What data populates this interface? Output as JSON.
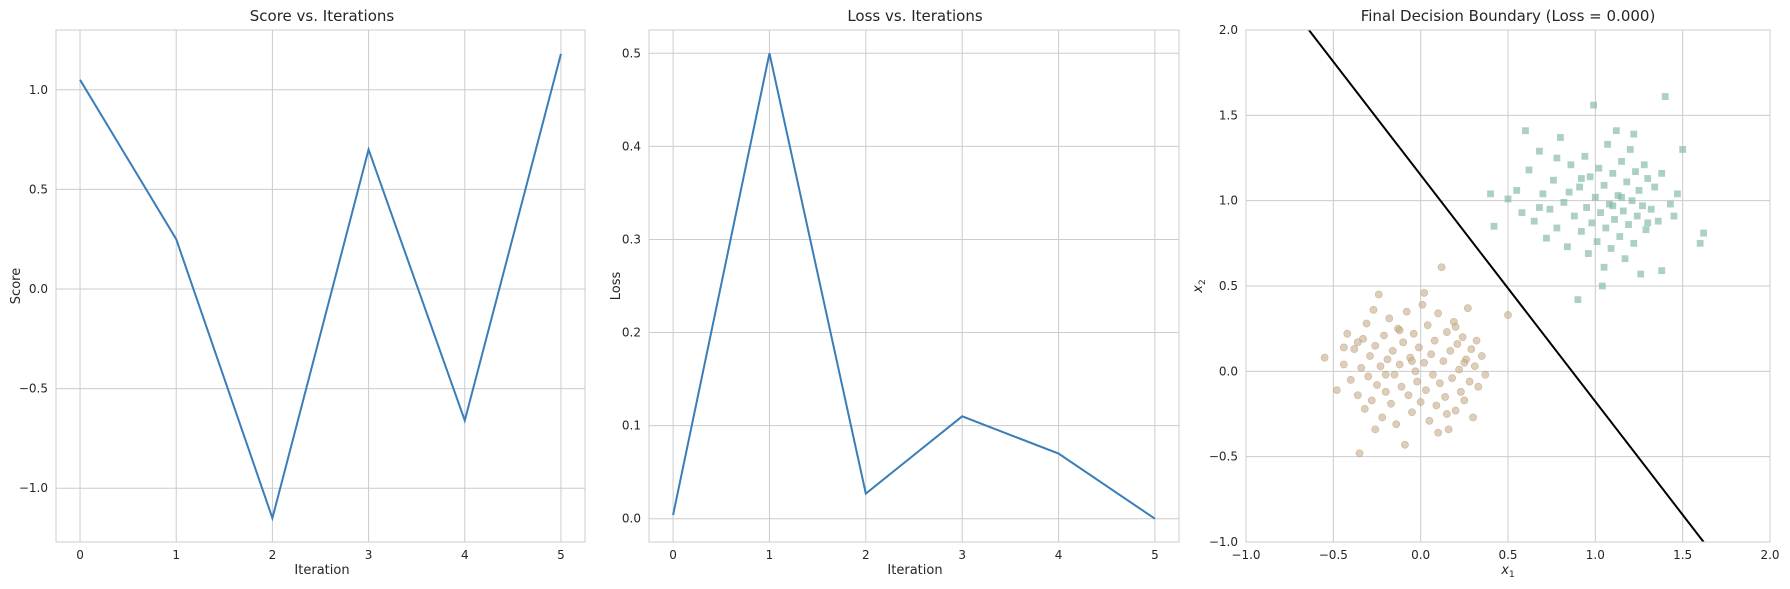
{
  "colors": {
    "line": "#3a7db7",
    "boundary": "#000000",
    "class_circle": "#c8ad8a",
    "class_square": "#7fb5a7",
    "grid": "#cccccc"
  },
  "chart_data": [
    {
      "type": "line",
      "title": "Score vs. Iterations",
      "xlabel": "Iteration",
      "ylabel": "Score",
      "x": [
        0,
        1,
        2,
        3,
        4,
        5
      ],
      "y": [
        1.05,
        0.25,
        -1.15,
        0.7,
        -0.66,
        1.18
      ],
      "xlim": [
        -0.25,
        5.25
      ],
      "ylim": [
        -1.27,
        1.3
      ],
      "xticks": [
        0,
        1,
        2,
        3,
        4,
        5
      ],
      "yticks": [
        -1.0,
        -0.5,
        0.0,
        0.5,
        1.0
      ],
      "xtick_labels": [
        "0",
        "1",
        "2",
        "3",
        "4",
        "5"
      ],
      "ytick_labels": [
        "−1.0",
        "−0.5",
        "0.0",
        "0.5",
        "1.0"
      ],
      "grid": true
    },
    {
      "type": "line",
      "title": "Loss vs. Iterations",
      "xlabel": "Iteration",
      "ylabel": "Loss",
      "x": [
        0,
        1,
        2,
        3,
        4,
        5
      ],
      "y": [
        0.004,
        0.5,
        0.027,
        0.11,
        0.07,
        0.0
      ],
      "xlim": [
        -0.25,
        5.25
      ],
      "ylim": [
        -0.025,
        0.525
      ],
      "xticks": [
        0,
        1,
        2,
        3,
        4,
        5
      ],
      "yticks": [
        0.0,
        0.1,
        0.2,
        0.3,
        0.4,
        0.5
      ],
      "xtick_labels": [
        "0",
        "1",
        "2",
        "3",
        "4",
        "5"
      ],
      "ytick_labels": [
        "0.0",
        "0.1",
        "0.2",
        "0.3",
        "0.4",
        "0.5"
      ],
      "grid": true
    },
    {
      "type": "scatter",
      "title": "Final Decision Boundary (Loss = 0.000)",
      "xlabel_main": "x",
      "xlabel_sub": "1",
      "ylabel_main": "x",
      "ylabel_sub": "2",
      "xlim": [
        -1.0,
        2.0
      ],
      "ylim": [
        -1.0,
        2.0
      ],
      "xticks": [
        -1.0,
        -0.5,
        0.0,
        0.5,
        1.0,
        1.5,
        2.0
      ],
      "yticks": [
        -1.0,
        -0.5,
        0.0,
        0.5,
        1.0,
        1.5,
        2.0
      ],
      "xtick_labels": [
        "−1.0",
        "−0.5",
        "0.0",
        "0.5",
        "1.0",
        "1.5",
        "2.0"
      ],
      "ytick_labels": [
        "−1.0",
        "−0.5",
        "0.0",
        "0.5",
        "1.0",
        "1.5",
        "2.0"
      ],
      "grid": true,
      "boundary": {
        "x": [
          -0.64,
          1.62
        ],
        "y": [
          2.0,
          -1.0
        ]
      },
      "series": [
        {
          "marker": "circle",
          "color": "#c8ad8a",
          "points": [
            [
              -0.55,
              0.08
            ],
            [
              -0.48,
              -0.11
            ],
            [
              -0.44,
              0.04
            ],
            [
              -0.42,
              0.22
            ],
            [
              -0.4,
              -0.05
            ],
            [
              -0.38,
              0.13
            ],
            [
              -0.36,
              -0.14
            ],
            [
              -0.35,
              -0.48
            ],
            [
              -0.34,
              0.02
            ],
            [
              -0.33,
              0.19
            ],
            [
              -0.32,
              -0.22
            ],
            [
              -0.31,
              0.28
            ],
            [
              -0.3,
              -0.03
            ],
            [
              -0.29,
              0.09
            ],
            [
              -0.28,
              -0.17
            ],
            [
              -0.27,
              0.36
            ],
            [
              -0.26,
              0.15
            ],
            [
              -0.25,
              -0.08
            ],
            [
              -0.24,
              0.45
            ],
            [
              -0.23,
              0.03
            ],
            [
              -0.22,
              -0.27
            ],
            [
              -0.21,
              0.21
            ],
            [
              -0.2,
              -0.12
            ],
            [
              -0.19,
              0.07
            ],
            [
              -0.18,
              0.31
            ],
            [
              -0.17,
              -0.19
            ],
            [
              -0.16,
              0.12
            ],
            [
              -0.15,
              -0.02
            ],
            [
              -0.14,
              -0.31
            ],
            [
              -0.13,
              0.25
            ],
            [
              -0.12,
              0.04
            ],
            [
              -0.11,
              -0.09
            ],
            [
              -0.1,
              0.17
            ],
            [
              -0.09,
              -0.43
            ],
            [
              -0.08,
              0.35
            ],
            [
              -0.07,
              -0.14
            ],
            [
              -0.06,
              0.08
            ],
            [
              -0.05,
              -0.24
            ],
            [
              -0.04,
              0.22
            ],
            [
              -0.03,
              0.0
            ],
            [
              -0.02,
              -0.06
            ],
            [
              -0.01,
              0.14
            ],
            [
              0.0,
              -0.18
            ],
            [
              0.01,
              0.39
            ],
            [
              0.02,
              0.05
            ],
            [
              0.03,
              -0.11
            ],
            [
              0.04,
              0.27
            ],
            [
              0.05,
              -0.29
            ],
            [
              0.06,
              0.1
            ],
            [
              0.07,
              -0.02
            ],
            [
              0.08,
              0.18
            ],
            [
              0.09,
              -0.2
            ],
            [
              0.1,
              0.34
            ],
            [
              0.11,
              -0.07
            ],
            [
              0.12,
              0.61
            ],
            [
              0.13,
              0.06
            ],
            [
              0.14,
              -0.15
            ],
            [
              0.15,
              0.23
            ],
            [
              0.16,
              -0.34
            ],
            [
              0.17,
              0.12
            ],
            [
              0.18,
              -0.04
            ],
            [
              0.19,
              0.29
            ],
            [
              0.2,
              -0.23
            ],
            [
              0.21,
              0.16
            ],
            [
              0.22,
              0.01
            ],
            [
              0.23,
              -0.12
            ],
            [
              0.24,
              0.2
            ],
            [
              0.25,
              -0.17
            ],
            [
              0.26,
              0.07
            ],
            [
              0.27,
              0.37
            ],
            [
              0.28,
              -0.06
            ],
            [
              0.29,
              0.13
            ],
            [
              0.3,
              -0.27
            ],
            [
              0.31,
              0.03
            ],
            [
              0.32,
              0.18
            ],
            [
              0.33,
              -0.09
            ],
            [
              0.35,
              0.09
            ],
            [
              0.37,
              -0.02
            ],
            [
              0.5,
              0.33
            ],
            [
              -0.36,
              0.17
            ],
            [
              -0.26,
              -0.34
            ],
            [
              -0.12,
              0.24
            ],
            [
              0.02,
              0.46
            ],
            [
              0.1,
              -0.36
            ],
            [
              0.2,
              0.26
            ],
            [
              -0.44,
              0.14
            ],
            [
              -0.05,
              0.06
            ],
            [
              0.15,
              -0.25
            ],
            [
              0.25,
              0.05
            ],
            [
              -0.2,
              -0.02
            ]
          ]
        },
        {
          "marker": "square",
          "color": "#7fb5a7",
          "points": [
            [
              0.42,
              0.85
            ],
            [
              0.5,
              1.01
            ],
            [
              0.55,
              1.06
            ],
            [
              0.58,
              0.93
            ],
            [
              0.62,
              1.18
            ],
            [
              0.65,
              0.88
            ],
            [
              0.68,
              1.29
            ],
            [
              0.7,
              1.04
            ],
            [
              0.72,
              0.78
            ],
            [
              0.74,
              0.95
            ],
            [
              0.76,
              1.12
            ],
            [
              0.78,
              0.84
            ],
            [
              0.8,
              1.37
            ],
            [
              0.82,
              0.99
            ],
            [
              0.84,
              0.73
            ],
            [
              0.86,
              1.21
            ],
            [
              0.88,
              0.91
            ],
            [
              0.9,
              0.42
            ],
            [
              0.91,
              1.08
            ],
            [
              0.92,
              0.82
            ],
            [
              0.94,
              1.26
            ],
            [
              0.95,
              0.96
            ],
            [
              0.96,
              0.69
            ],
            [
              0.97,
              1.14
            ],
            [
              0.98,
              0.87
            ],
            [
              0.99,
              1.56
            ],
            [
              1.0,
              1.02
            ],
            [
              1.01,
              0.76
            ],
            [
              1.02,
              1.19
            ],
            [
              1.03,
              0.93
            ],
            [
              1.04,
              0.5
            ],
            [
              1.05,
              1.09
            ],
            [
              1.06,
              0.84
            ],
            [
              1.07,
              1.33
            ],
            [
              1.08,
              0.98
            ],
            [
              1.09,
              0.72
            ],
            [
              1.1,
              1.16
            ],
            [
              1.11,
              0.89
            ],
            [
              1.12,
              1.41
            ],
            [
              1.13,
              1.03
            ],
            [
              1.14,
              0.79
            ],
            [
              1.15,
              1.23
            ],
            [
              1.16,
              0.94
            ],
            [
              1.17,
              0.66
            ],
            [
              1.18,
              1.11
            ],
            [
              1.19,
              0.86
            ],
            [
              1.2,
              1.3
            ],
            [
              1.21,
              1.0
            ],
            [
              1.22,
              0.75
            ],
            [
              1.23,
              1.17
            ],
            [
              1.24,
              0.91
            ],
            [
              1.25,
              1.06
            ],
            [
              1.26,
              0.57
            ],
            [
              1.27,
              0.97
            ],
            [
              1.28,
              1.21
            ],
            [
              1.29,
              0.83
            ],
            [
              1.3,
              1.13
            ],
            [
              1.32,
              0.95
            ],
            [
              1.34,
              1.08
            ],
            [
              1.36,
              0.88
            ],
            [
              1.38,
              1.16
            ],
            [
              1.4,
              1.61
            ],
            [
              1.43,
              0.98
            ],
            [
              1.47,
              1.04
            ],
            [
              1.5,
              1.3
            ],
            [
              1.6,
              0.75
            ],
            [
              1.62,
              0.81
            ],
            [
              0.6,
              1.41
            ],
            [
              0.85,
              1.05
            ],
            [
              1.05,
              0.61
            ],
            [
              1.15,
              1.02
            ],
            [
              0.78,
              1.25
            ],
            [
              1.3,
              0.87
            ],
            [
              0.4,
              1.04
            ],
            [
              1.38,
              0.59
            ],
            [
              1.22,
              1.39
            ],
            [
              0.92,
              1.13
            ],
            [
              1.1,
              0.97
            ],
            [
              0.68,
              0.96
            ],
            [
              1.45,
              0.91
            ]
          ]
        }
      ]
    }
  ]
}
